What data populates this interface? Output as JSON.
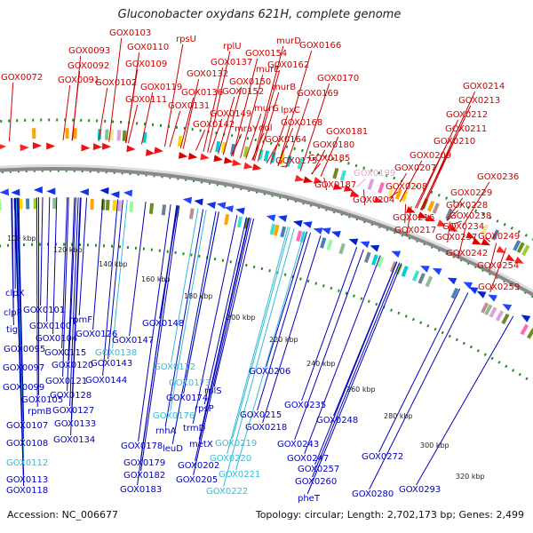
{
  "title": "Gluconobacter oxydans 621H, complete genome",
  "footer": {
    "accession": "Accession: NC_006677",
    "topology": "Topology: circular; Length: 2,702,173 bp; Genes: 2,499"
  },
  "colors": {
    "forward_label": "#cc0000",
    "reverse_label": "#0000bb",
    "rna_label_forward": "#f7a0d0",
    "rna_label_reverse": "#33bbdd",
    "backbone": "#8a8a8a",
    "tick_dots": "#1f8f1f"
  },
  "scale_labels": [
    "100 kbp",
    "120 kbp",
    "140 kbp",
    "160 kbp",
    "180 kbp",
    "200 kbp",
    "220 kbp",
    "240 kbp",
    "260 kbp",
    "280 kbp",
    "300 kbp",
    "320 kbp"
  ],
  "forward_labels": [
    {
      "text": "GOX0072",
      "c": "r"
    },
    {
      "text": "GOX0093",
      "c": "r"
    },
    {
      "text": "GOX0092",
      "c": "r"
    },
    {
      "text": "GOX0091",
      "c": "r"
    },
    {
      "text": "GOX0103",
      "c": "r"
    },
    {
      "text": "GOX0110",
      "c": "r"
    },
    {
      "text": "GOX0109",
      "c": "r"
    },
    {
      "text": "GOX0102",
      "c": "r"
    },
    {
      "text": "GOX0119",
      "c": "r"
    },
    {
      "text": "GOX0111",
      "c": "r"
    },
    {
      "text": "rpsU",
      "c": "r"
    },
    {
      "text": "GOX0132",
      "c": "r"
    },
    {
      "text": "GOX0136",
      "c": "r"
    },
    {
      "text": "GOX0131",
      "c": "r"
    },
    {
      "text": "rplU",
      "c": "r"
    },
    {
      "text": "GOX0137",
      "c": "r"
    },
    {
      "text": "GOX0150",
      "c": "r"
    },
    {
      "text": "GOX0152",
      "c": "r"
    },
    {
      "text": "GOX0149",
      "c": "r"
    },
    {
      "text": "GOX0142",
      "c": "r"
    },
    {
      "text": "murD",
      "c": "r"
    },
    {
      "text": "GOX0154",
      "c": "r"
    },
    {
      "text": "murE",
      "c": "r"
    },
    {
      "text": "GOX0162",
      "c": "r"
    },
    {
      "text": "murB",
      "c": "r"
    },
    {
      "text": "murG",
      "c": "r"
    },
    {
      "text": "mraY",
      "c": "r"
    },
    {
      "text": "ddl",
      "c": "r"
    },
    {
      "text": "lpxC",
      "c": "r"
    },
    {
      "text": "GOX0168",
      "c": "r"
    },
    {
      "text": "GOX0164",
      "c": "r"
    },
    {
      "text": "GOX0175",
      "c": "r"
    },
    {
      "text": "GOX0166",
      "c": "r"
    },
    {
      "text": "GOX0170",
      "c": "r"
    },
    {
      "text": "GOX0169",
      "c": "r"
    },
    {
      "text": "GOX0181",
      "c": "r"
    },
    {
      "text": "GOX0180",
      "c": "r"
    },
    {
      "text": "GOX0185",
      "c": "r"
    },
    {
      "text": "GOX0187",
      "c": "r"
    },
    {
      "text": "GOX0199",
      "c": "p"
    },
    {
      "text": "GOX0204",
      "c": "r"
    },
    {
      "text": "GOX0208",
      "c": "r"
    },
    {
      "text": "GOX0207",
      "c": "r"
    },
    {
      "text": "GOX0209",
      "c": "r"
    },
    {
      "text": "GOX0210",
      "c": "r"
    },
    {
      "text": "GOX0211",
      "c": "r"
    },
    {
      "text": "GOX0212",
      "c": "r"
    },
    {
      "text": "GOX0213",
      "c": "r"
    },
    {
      "text": "GOX0214",
      "c": "r"
    },
    {
      "text": "GOX0216",
      "c": "r"
    },
    {
      "text": "GOX0217",
      "c": "r"
    },
    {
      "text": "GOX0228",
      "c": "r"
    },
    {
      "text": "GOX0229",
      "c": "r"
    },
    {
      "text": "GOX0236",
      "c": "r"
    },
    {
      "text": "GOX0238",
      "c": "r"
    },
    {
      "text": "GOX0234",
      "c": "r"
    },
    {
      "text": "GOX0237",
      "c": "r"
    },
    {
      "text": "GOX0249",
      "c": "r"
    },
    {
      "text": "GOX0242",
      "c": "r"
    },
    {
      "text": "GOX0254",
      "c": "r"
    },
    {
      "text": "GOX0259",
      "c": "r"
    }
  ],
  "reverse_labels": [
    {
      "text": "clpX",
      "c": "b"
    },
    {
      "text": "clpP",
      "c": "b"
    },
    {
      "text": "tig",
      "c": "b"
    },
    {
      "text": "GOX0101",
      "c": "b"
    },
    {
      "text": "GOX0100",
      "c": "b"
    },
    {
      "text": "GOX0104",
      "c": "b"
    },
    {
      "text": "GOX0095",
      "c": "b"
    },
    {
      "text": "GOX0097",
      "c": "b"
    },
    {
      "text": "GOX0099",
      "c": "b"
    },
    {
      "text": "GOX0105",
      "c": "b"
    },
    {
      "text": "rpmB",
      "c": "b"
    },
    {
      "text": "GOX0107",
      "c": "b"
    },
    {
      "text": "GOX0108",
      "c": "b"
    },
    {
      "text": "GOX0112",
      "c": "c"
    },
    {
      "text": "GOX0113",
      "c": "b"
    },
    {
      "text": "GOX0118",
      "c": "b"
    },
    {
      "text": "rpmF",
      "c": "b"
    },
    {
      "text": "GOX0126",
      "c": "b"
    },
    {
      "text": "GOX0115",
      "c": "b"
    },
    {
      "text": "GOX0120",
      "c": "b"
    },
    {
      "text": "GOX0121",
      "c": "b"
    },
    {
      "text": "GOX0128",
      "c": "b"
    },
    {
      "text": "GOX0127",
      "c": "b"
    },
    {
      "text": "GOX0133",
      "c": "b"
    },
    {
      "text": "GOX0134",
      "c": "b"
    },
    {
      "text": "GOX0138",
      "c": "c"
    },
    {
      "text": "GOX0143",
      "c": "b"
    },
    {
      "text": "GOX0144",
      "c": "b"
    },
    {
      "text": "GOX0147",
      "c": "b"
    },
    {
      "text": "GOX0148",
      "c": "b"
    },
    {
      "text": "GOX0172",
      "c": "c"
    },
    {
      "text": "GOX0173",
      "c": "c"
    },
    {
      "text": "GOX0174",
      "c": "b"
    },
    {
      "text": "GOX0176",
      "c": "c"
    },
    {
      "text": "rnhA",
      "c": "b"
    },
    {
      "text": "GOX0178",
      "c": "b"
    },
    {
      "text": "leuD",
      "c": "b"
    },
    {
      "text": "GOX0179",
      "c": "b"
    },
    {
      "text": "GOX0182",
      "c": "b"
    },
    {
      "text": "GOX0183",
      "c": "b"
    },
    {
      "text": "trmD",
      "c": "b"
    },
    {
      "text": "GOX0202",
      "c": "b"
    },
    {
      "text": "metX",
      "c": "b"
    },
    {
      "text": "GOX0205",
      "c": "b"
    },
    {
      "text": "rplS",
      "c": "b"
    },
    {
      "text": "rpsP",
      "c": "b"
    },
    {
      "text": "GOX0206",
      "c": "b"
    },
    {
      "text": "GOX0215",
      "c": "b"
    },
    {
      "text": "GOX0218",
      "c": "b"
    },
    {
      "text": "GOX0219",
      "c": "c"
    },
    {
      "text": "GOX0220",
      "c": "c"
    },
    {
      "text": "GOX0221",
      "c": "c"
    },
    {
      "text": "GOX0222",
      "c": "c"
    },
    {
      "text": "GOX0235",
      "c": "b"
    },
    {
      "text": "GOX0248",
      "c": "b"
    },
    {
      "text": "GOX0243",
      "c": "b"
    },
    {
      "text": "GOX0247",
      "c": "b"
    },
    {
      "text": "GOX0257",
      "c": "b"
    },
    {
      "text": "GOX0260",
      "c": "b"
    },
    {
      "text": "pheT",
      "c": "b"
    },
    {
      "text": "GOX0272",
      "c": "b"
    },
    {
      "text": "GOX0280",
      "c": "b"
    },
    {
      "text": "GOX0293",
      "c": "b"
    }
  ]
}
